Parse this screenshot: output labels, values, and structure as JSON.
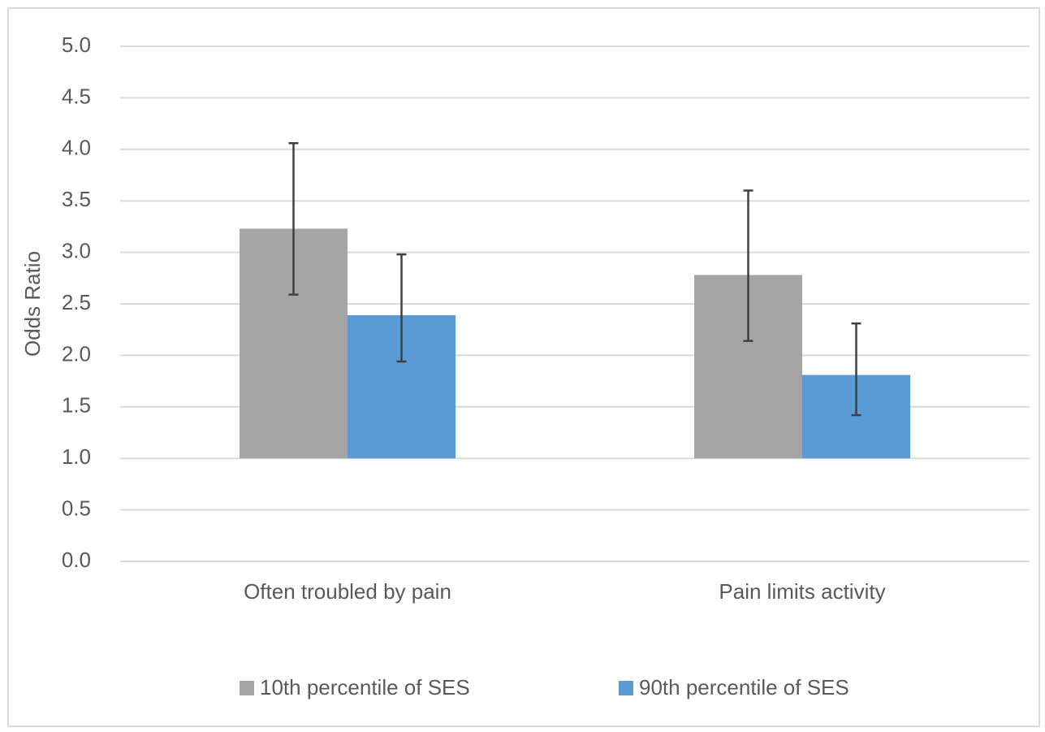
{
  "chart_data": {
    "type": "bar",
    "y_label": "Odds Ratio",
    "categories": [
      "Often troubled by pain",
      "Pain limits activity"
    ],
    "bar_base": 1,
    "series": [
      {
        "name": "10th percentile of SES",
        "color": "#a5a5a5",
        "values": [
          3.23,
          2.78
        ],
        "ci_low": [
          2.59,
          2.14
        ],
        "ci_high": [
          4.06,
          3.6
        ]
      },
      {
        "name": "90th percentile of SES",
        "color": "#5b9bd5",
        "values": [
          2.39,
          1.81
        ],
        "ci_low": [
          1.94,
          1.42
        ],
        "ci_high": [
          2.98,
          2.31
        ]
      }
    ],
    "ylim": [
      0,
      5
    ],
    "yticks": [
      {
        "value": 0,
        "label": "0.0"
      },
      0.5,
      {
        "value": 1,
        "label": "1.0"
      },
      1.5,
      {
        "value": 2,
        "label": "2.0"
      },
      2.5,
      {
        "value": 3,
        "label": "3.0"
      },
      3.5,
      {
        "value": 4,
        "label": "4.0"
      },
      4.5,
      {
        "value": 5,
        "label": "5.0"
      }
    ],
    "grid": true,
    "legend": "bottom"
  }
}
